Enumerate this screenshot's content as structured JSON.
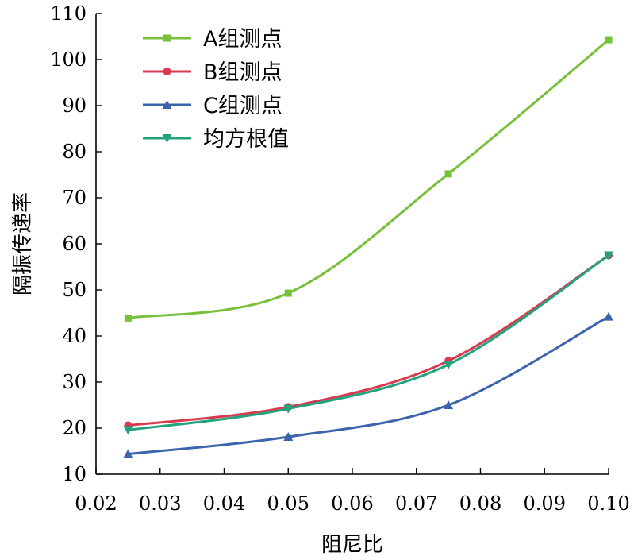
{
  "chart_data": {
    "type": "line",
    "xlabel": "阻尼比",
    "ylabel": "隔振传递率",
    "xlim": [
      0.02,
      0.1
    ],
    "ylim": [
      10,
      110
    ],
    "xticks": [
      0.02,
      0.03,
      0.04,
      0.05,
      0.06,
      0.07,
      0.08,
      0.09,
      0.1
    ],
    "xtick_labels": [
      "0.02",
      "0.03",
      "0.04",
      "0.05",
      "0.06",
      "0.07",
      "0.08",
      "0.09",
      "0.10"
    ],
    "yticks": [
      10,
      20,
      30,
      40,
      50,
      60,
      70,
      80,
      90,
      100,
      110
    ],
    "ytick_labels": [
      "10",
      "20",
      "30",
      "40",
      "50",
      "60",
      "70",
      "80",
      "90",
      "100",
      "110"
    ],
    "grid": false,
    "legend_position": "top-left",
    "x": [
      0.025,
      0.05,
      0.075,
      0.1
    ],
    "series": [
      {
        "name": "A组测点",
        "values": [
          43.9,
          49.3,
          75.2,
          104.3
        ],
        "color": "#77c13a",
        "marker": "square"
      },
      {
        "name": "B组测点",
        "values": [
          20.6,
          24.6,
          34.6,
          57.5
        ],
        "color": "#d93a4e",
        "marker": "circle"
      },
      {
        "name": "C组测点",
        "values": [
          14.4,
          18.1,
          25.0,
          44.2
        ],
        "color": "#3c64ad",
        "marker": "triangle-up"
      },
      {
        "name": "均方根值",
        "values": [
          19.6,
          24.2,
          33.8,
          57.5
        ],
        "color": "#23a37d",
        "marker": "triangle-down"
      }
    ]
  }
}
